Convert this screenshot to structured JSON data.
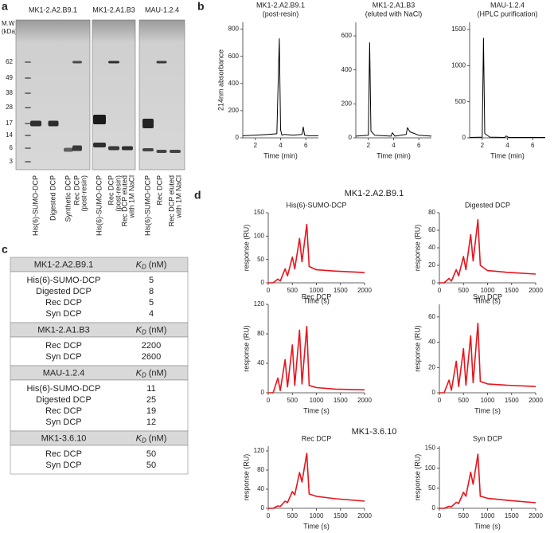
{
  "panel_labels": [
    "a",
    "b",
    "c",
    "d"
  ],
  "gel": {
    "mw_label": [
      "M.W",
      "(kDa)"
    ],
    "markers": [
      62,
      49,
      38,
      28,
      17,
      14,
      6,
      3
    ],
    "gels": [
      {
        "title": "MK1-2.A2.B9.1",
        "lanes": [
          [
            "His(6)-SUMO-DCP"
          ],
          [
            "Digested DCP"
          ],
          [
            "Synthetic DCP"
          ],
          [
            "Rec DCP",
            "(post-resin)"
          ]
        ]
      },
      {
        "title": "MK1-2.A1.B3",
        "lanes": [
          [
            "His(6)-SUMO-DCP"
          ],
          [
            "Rec DCP",
            "(post-resin)"
          ],
          [
            "Rec DCP eluted",
            "with 1M NaCl"
          ]
        ]
      },
      {
        "title": "MAU-1.2.4",
        "lanes": [
          [
            "His(6)-SUMO-DCP"
          ],
          [
            "Rec DCP"
          ],
          [
            "Rec DCP eluted",
            "with 1M NaCl"
          ]
        ]
      }
    ]
  },
  "table": {
    "kd_symbol": "K",
    "kd_subscript": "D",
    "kd_unit": "(nM)",
    "groups": [
      {
        "name": "MK1-2.A2.B9.1",
        "rows": [
          [
            "His(6)-SUMO-DCP",
            5
          ],
          [
            "Digested DCP",
            8
          ],
          [
            "Rec DCP",
            5
          ],
          [
            "Syn DCP",
            4
          ]
        ]
      },
      {
        "name": "MK1-2.A1.B3",
        "rows": [
          [
            "Rec DCP",
            2200
          ],
          [
            "Syn DCP",
            2600
          ]
        ]
      },
      {
        "name": "MAU-1.2.4",
        "rows": [
          [
            "His(6)-SUMO-DCP",
            11
          ],
          [
            "Digested DCP",
            25
          ],
          [
            "Rec DCP",
            19
          ],
          [
            "Syn DCP",
            12
          ]
        ]
      },
      {
        "name": "MK1-3.6.10",
        "rows": [
          [
            "Rec DCP",
            50
          ],
          [
            "Syn DCP",
            50
          ]
        ]
      }
    ]
  },
  "d_headings": [
    "MK1-2.A2.B9.1",
    "MK1-3.6.10"
  ],
  "chart_data": [
    {
      "type": "line",
      "title": "MK1-2.A2.B9.1",
      "subtitle": "(post-resin)",
      "ylabel": "214nm absorbance",
      "xlabel": "Time (min)",
      "x": [
        1,
        2,
        3,
        3.7,
        3.9,
        4.0,
        4.1,
        4.3,
        5,
        5.7,
        5.8,
        5.9,
        6.2,
        7
      ],
      "values": [
        15,
        20,
        25,
        30,
        730,
        60,
        20,
        25,
        20,
        25,
        80,
        20,
        15,
        15
      ],
      "color": "#000000",
      "xlim": [
        1,
        7
      ],
      "ylim": [
        0,
        850
      ],
      "xticks": [
        2,
        4,
        6
      ],
      "yticks": [
        0,
        200,
        400,
        600,
        800
      ]
    },
    {
      "type": "line",
      "title": "MK1-2.A1.B3",
      "subtitle": "(eluted with NaCl)",
      "xlabel": "Time (min)",
      "x": [
        1,
        2.0,
        2.1,
        2.2,
        2.5,
        3.8,
        3.9,
        4.1,
        5,
        5.1,
        5.3,
        6,
        7
      ],
      "values": [
        10,
        15,
        560,
        40,
        15,
        10,
        30,
        10,
        20,
        60,
        35,
        15,
        10
      ],
      "color": "#000000",
      "xlim": [
        1,
        7
      ],
      "ylim": [
        0,
        680
      ],
      "xticks": [
        2,
        4,
        6
      ],
      "yticks": [
        0,
        200,
        400,
        600
      ]
    },
    {
      "type": "line",
      "title": "MAU-1.2.4",
      "subtitle": "(HPLC purification)",
      "xlabel": "Time (min)",
      "x": [
        1,
        2.0,
        2.1,
        2.2,
        2.6,
        3.8,
        3.9,
        4.1,
        5,
        7
      ],
      "values": [
        5,
        10,
        1380,
        60,
        10,
        5,
        25,
        5,
        5,
        5
      ],
      "color": "#000000",
      "xlim": [
        1,
        7
      ],
      "ylim": [
        0,
        1600
      ],
      "xticks": [
        2,
        4,
        6
      ],
      "yticks": [
        0,
        500,
        1000,
        1500
      ]
    },
    {
      "type": "line",
      "title": "His(6)-SUMO-DCP",
      "ylabel": "response (RU)",
      "xlabel": "Time (s)",
      "x": [
        0,
        100,
        200,
        250,
        350,
        400,
        500,
        550,
        650,
        700,
        800,
        850,
        1000,
        1400,
        2000
      ],
      "values": [
        0,
        0,
        8,
        4,
        30,
        15,
        55,
        30,
        95,
        45,
        125,
        35,
        28,
        25,
        22
      ],
      "color": "#e8141c",
      "xlim": [
        0,
        2000
      ],
      "ylim": [
        0,
        150
      ],
      "xticks": [
        0,
        500,
        1000,
        1500,
        2000
      ],
      "yticks": [
        0,
        50,
        100,
        150
      ]
    },
    {
      "type": "line",
      "title": "Digested DCP",
      "ylabel": "response (RU)",
      "xlabel": "Time (s)",
      "x": [
        0,
        100,
        200,
        250,
        350,
        400,
        500,
        550,
        650,
        700,
        800,
        850,
        1000,
        1400,
        2000
      ],
      "values": [
        0,
        0,
        5,
        2,
        15,
        8,
        30,
        15,
        55,
        25,
        72,
        20,
        14,
        12,
        10
      ],
      "color": "#e8141c",
      "xlim": [
        0,
        2000
      ],
      "ylim": [
        0,
        80
      ],
      "xticks": [
        0,
        500,
        1000,
        1500,
        2000
      ],
      "yticks": [
        0,
        20,
        40,
        60,
        80
      ]
    },
    {
      "type": "line",
      "title": "Rec DCP",
      "ylabel": "response (RU)",
      "xlabel": "Time (s)",
      "x": [
        0,
        100,
        200,
        250,
        350,
        400,
        500,
        550,
        650,
        700,
        800,
        850,
        1000,
        1400,
        2000
      ],
      "values": [
        0,
        0,
        20,
        3,
        45,
        8,
        65,
        10,
        85,
        12,
        90,
        10,
        7,
        5,
        4
      ],
      "color": "#e8141c",
      "xlim": [
        0,
        2000
      ],
      "ylim": [
        0,
        120
      ],
      "xticks": [
        0,
        500,
        1000,
        1500,
        2000
      ],
      "yticks": [
        0,
        40,
        80,
        120
      ]
    },
    {
      "type": "line",
      "title": "Syn DCP",
      "ylabel": "response (RU)",
      "xlabel": "Time (s)",
      "x": [
        0,
        100,
        200,
        250,
        350,
        400,
        500,
        550,
        650,
        700,
        800,
        850,
        1000,
        1400,
        2000
      ],
      "values": [
        0,
        0,
        10,
        2,
        25,
        5,
        35,
        6,
        45,
        8,
        55,
        9,
        7,
        6,
        5
      ],
      "color": "#e8141c",
      "xlim": [
        0,
        2000
      ],
      "ylim": [
        0,
        70
      ],
      "xticks": [
        0,
        500,
        1000,
        1500,
        2000
      ],
      "yticks": [
        0,
        20,
        40,
        60
      ]
    },
    {
      "type": "line",
      "title": "Rec DCP",
      "ylabel": "response (RU)",
      "xlabel": "Time (s)",
      "x": [
        0,
        100,
        200,
        250,
        350,
        400,
        500,
        550,
        650,
        700,
        800,
        850,
        1000,
        1400,
        2000
      ],
      "values": [
        0,
        0,
        5,
        4,
        15,
        12,
        35,
        28,
        75,
        55,
        115,
        30,
        25,
        20,
        15
      ],
      "color": "#e8141c",
      "xlim": [
        0,
        2000
      ],
      "ylim": [
        0,
        130
      ],
      "xticks": [
        0,
        500,
        1000,
        1500,
        2000
      ],
      "yticks": [
        0,
        40,
        80,
        120
      ]
    },
    {
      "type": "line",
      "title": "Syn DCP",
      "ylabel": "response (RU)",
      "xlabel": "Time (s)",
      "x": [
        0,
        100,
        200,
        250,
        350,
        400,
        500,
        550,
        650,
        700,
        800,
        850,
        1000,
        1400,
        2000
      ],
      "values": [
        0,
        0,
        5,
        4,
        15,
        12,
        40,
        30,
        90,
        60,
        135,
        30,
        25,
        20,
        14
      ],
      "color": "#e8141c",
      "xlim": [
        0,
        2000
      ],
      "ylim": [
        0,
        155
      ],
      "xticks": [
        0,
        500,
        1000,
        1500,
        2000
      ],
      "yticks": [
        0,
        50,
        100,
        150
      ]
    }
  ]
}
